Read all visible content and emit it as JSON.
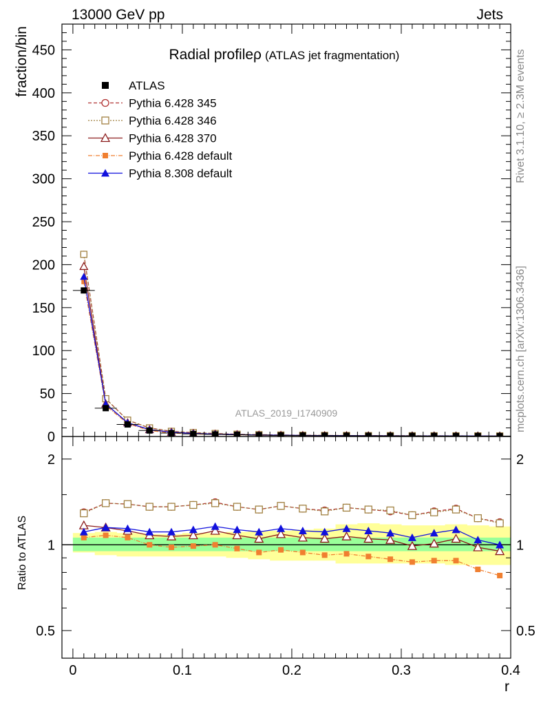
{
  "header": {
    "left": "13000 GeV pp",
    "right": "Jets"
  },
  "side": {
    "rivet": "Rivet 3.1.10, ≥ 2.3M events",
    "mcplots": "mcplots.cern.ch [arXiv:1306.3436]"
  },
  "chart_data": {
    "type": "line",
    "title": "Radial profileρ",
    "subtitle": "(ATLAS jet fragmentation)",
    "analysis_id": "ATLAS_2019_I1740909",
    "xlabel": "r",
    "ylabel_main": "fraction/bin",
    "ylabel_ratio": "Ratio to ATLAS",
    "xlim": [
      -0.01,
      0.4
    ],
    "ylim_main": [
      0,
      480
    ],
    "ylim_ratio_log": [
      0.4,
      2.4
    ],
    "x_ticks": [
      0,
      0.1,
      0.2,
      0.3,
      0.4
    ],
    "x_tick_labels": [
      "0",
      "0.1",
      "0.2",
      "0.3",
      "0.4"
    ],
    "y_ticks_main": [
      0,
      50,
      100,
      150,
      200,
      250,
      300,
      350,
      400,
      450
    ],
    "y_tick_labels_main": [
      "0",
      "50",
      "100",
      "150",
      "200",
      "250",
      "300",
      "350",
      "400",
      "450"
    ],
    "y_ticks_ratio": [
      0.5,
      1,
      2
    ],
    "y_tick_labels_ratio": [
      "0.5",
      "1",
      "2"
    ],
    "legend_position": "top-left",
    "x": [
      0.01,
      0.03,
      0.05,
      0.07,
      0.09,
      0.11,
      0.13,
      0.15,
      0.17,
      0.19,
      0.21,
      0.23,
      0.25,
      0.27,
      0.29,
      0.31,
      0.33,
      0.35,
      0.37,
      0.39
    ],
    "x_bin_width": 0.02,
    "data": {
      "name": "ATLAS",
      "values": [
        170,
        33,
        14,
        7,
        4,
        3,
        2.5,
        2,
        1.6,
        1.3,
        1.1,
        1.0,
        0.9,
        0.8,
        0.75,
        0.7,
        0.65,
        0.6,
        0.55,
        0.5
      ]
    },
    "band_inner": [
      [
        0.95,
        1.06
      ],
      [
        0.95,
        1.06
      ],
      [
        0.95,
        1.06
      ],
      [
        0.95,
        1.06
      ],
      [
        0.95,
        1.06
      ],
      [
        0.95,
        1.06
      ],
      [
        0.95,
        1.06
      ],
      [
        0.95,
        1.06
      ],
      [
        0.95,
        1.06
      ],
      [
        0.95,
        1.06
      ],
      [
        0.95,
        1.06
      ],
      [
        0.95,
        1.06
      ],
      [
        0.95,
        1.06
      ],
      [
        0.95,
        1.06
      ],
      [
        0.95,
        1.06
      ],
      [
        0.95,
        1.06
      ],
      [
        0.95,
        1.06
      ],
      [
        0.95,
        1.06
      ],
      [
        0.95,
        1.06
      ],
      [
        0.95,
        1.06
      ]
    ],
    "band_outer": [
      [
        0.94,
        1.1
      ],
      [
        0.92,
        1.11
      ],
      [
        0.91,
        1.1
      ],
      [
        0.91,
        1.09
      ],
      [
        0.91,
        1.09
      ],
      [
        0.91,
        1.1
      ],
      [
        0.91,
        1.1
      ],
      [
        0.9,
        1.11
      ],
      [
        0.89,
        1.12
      ],
      [
        0.88,
        1.12
      ],
      [
        0.88,
        1.13
      ],
      [
        0.88,
        1.14
      ],
      [
        0.86,
        1.18
      ],
      [
        0.86,
        1.19
      ],
      [
        0.86,
        1.18
      ],
      [
        0.86,
        1.17
      ],
      [
        0.86,
        1.17
      ],
      [
        0.85,
        1.18
      ],
      [
        0.85,
        1.17
      ],
      [
        0.85,
        1.16
      ]
    ],
    "series": [
      {
        "name": "Pythia 6.428 345",
        "color": "#b03030",
        "dash": "5,3",
        "marker": "circle-open",
        "values": [
          212,
          44,
          19,
          10,
          6,
          4.5,
          3.5,
          2.6,
          2.1,
          1.7,
          1.4,
          1.25,
          1.15,
          1.0,
          0.95,
          0.85,
          0.8,
          0.75,
          0.68,
          0.6
        ],
        "ratio": [
          1.3,
          1.4,
          1.39,
          1.36,
          1.36,
          1.38,
          1.41,
          1.36,
          1.33,
          1.37,
          1.34,
          1.32,
          1.35,
          1.33,
          1.31,
          1.27,
          1.31,
          1.34,
          1.24,
          1.2
        ]
      },
      {
        "name": "Pythia 6.428 346",
        "color": "#a08040",
        "dash": "2,2",
        "marker": "square-open",
        "values": [
          212,
          44,
          19,
          10,
          6,
          4.5,
          3.5,
          2.6,
          2.1,
          1.7,
          1.4,
          1.25,
          1.15,
          1.0,
          0.95,
          0.85,
          0.8,
          0.75,
          0.68,
          0.6
        ],
        "ratio": [
          1.29,
          1.4,
          1.39,
          1.36,
          1.36,
          1.38,
          1.4,
          1.36,
          1.33,
          1.37,
          1.34,
          1.31,
          1.35,
          1.33,
          1.32,
          1.27,
          1.3,
          1.33,
          1.24,
          1.19
        ]
      },
      {
        "name": "Pythia 6.428 370",
        "color": "#8b1a1a",
        "dash": "",
        "marker": "triangle-open",
        "values": [
          198,
          38,
          16,
          8,
          5,
          3.5,
          2.8,
          2.2,
          1.7,
          1.4,
          1.2,
          1.05,
          1.0,
          0.85,
          0.8,
          0.7,
          0.68,
          0.64,
          0.55,
          0.48
        ],
        "ratio": [
          1.17,
          1.15,
          1.12,
          1.08,
          1.07,
          1.08,
          1.12,
          1.08,
          1.05,
          1.09,
          1.06,
          1.05,
          1.07,
          1.05,
          1.04,
          0.99,
          1.01,
          1.05,
          0.98,
          0.95
        ]
      },
      {
        "name": "Pythia 6.428 default",
        "color": "#f07f30",
        "dash": "6,2,1,2",
        "marker": "square-filled",
        "values": [
          180,
          36,
          15,
          7,
          4,
          3,
          2.5,
          1.9,
          1.5,
          1.25,
          1.05,
          0.93,
          0.85,
          0.74,
          0.68,
          0.61,
          0.57,
          0.53,
          0.45,
          0.39
        ],
        "ratio": [
          1.06,
          1.08,
          1.06,
          1.0,
          0.98,
          0.99,
          1.0,
          0.97,
          0.94,
          0.96,
          0.94,
          0.92,
          0.93,
          0.91,
          0.89,
          0.87,
          0.88,
          0.88,
          0.82,
          0.78
        ]
      },
      {
        "name": "Pythia 8.308 default",
        "color": "#1010dd",
        "dash": "",
        "marker": "triangle-filled",
        "values": [
          186,
          38,
          16,
          8,
          5,
          3.5,
          2.8,
          2.2,
          1.7,
          1.45,
          1.2,
          1.1,
          1.0,
          0.9,
          0.8,
          0.7,
          0.7,
          0.65,
          0.56,
          0.5
        ],
        "ratio": [
          1.11,
          1.15,
          1.14,
          1.11,
          1.11,
          1.13,
          1.16,
          1.13,
          1.11,
          1.14,
          1.12,
          1.11,
          1.14,
          1.12,
          1.1,
          1.06,
          1.1,
          1.13,
          1.04,
          1.0
        ]
      }
    ]
  }
}
